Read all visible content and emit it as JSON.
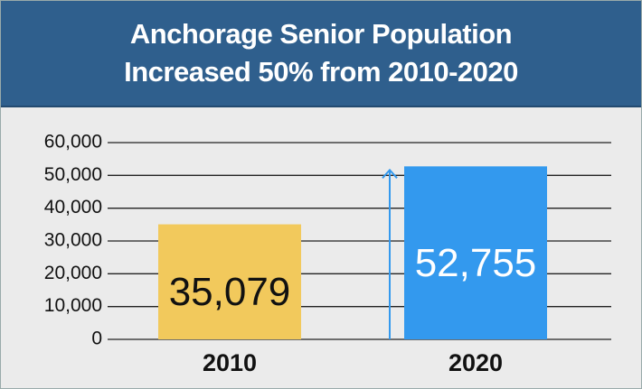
{
  "chart_data": {
    "type": "bar",
    "title": "Anchorage Senior Population Increased 50% from 2010-2020",
    "categories": [
      "2010",
      "2020"
    ],
    "values": [
      35079,
      52755
    ],
    "value_labels": [
      "35,079",
      "52,755"
    ],
    "colors": [
      "#f2c95c",
      "#3399ee"
    ],
    "ylim": [
      0,
      60000
    ],
    "yticks": [
      0,
      {
        "value": 10000,
        "label": "10,000"
      },
      {
        "value": 20000,
        "label": "20,000"
      },
      {
        "value": 30000,
        "label": "30,000"
      },
      {
        "value": 40000,
        "label": "40,000"
      },
      {
        "value": 50000,
        "label": "50,000"
      },
      {
        "value": 60000,
        "label": "60,000"
      }
    ],
    "grid": true
  }
}
